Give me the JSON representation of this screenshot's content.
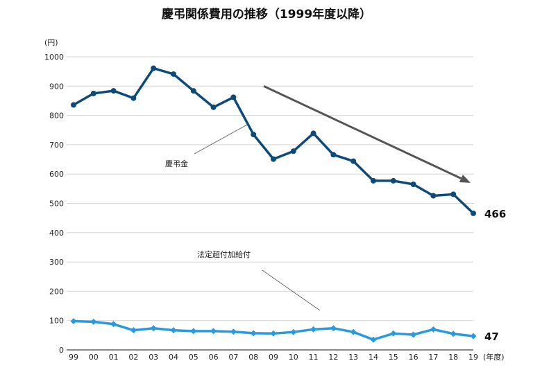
{
  "chart_data": {
    "type": "line",
    "title": "慶弔関係費用の推移（1999年度以降）",
    "y_unit_label": "(円)",
    "x_unit_label": "(年度)",
    "ylim": [
      0,
      1000
    ],
    "y_ticks": [
      0,
      100,
      200,
      300,
      400,
      500,
      600,
      700,
      800,
      900,
      1000
    ],
    "grid": true,
    "categories": [
      "99",
      "00",
      "01",
      "02",
      "03",
      "04",
      "05",
      "06",
      "07",
      "08",
      "09",
      "10",
      "11",
      "12",
      "13",
      "14",
      "15",
      "16",
      "17",
      "18",
      "19"
    ],
    "series": [
      {
        "name": "慶弔金",
        "color": "#0d4a7a",
        "marker": "circle",
        "values": [
          836,
          875,
          884,
          859,
          961,
          941,
          884,
          828,
          862,
          735,
          651,
          678,
          739,
          666,
          644,
          577,
          577,
          565,
          526,
          531,
          466
        ],
        "end_label": "466"
      },
      {
        "name": "法定超付加給付",
        "color": "#2a9ae0",
        "marker": "diamond",
        "values": [
          98,
          96,
          88,
          67,
          74,
          67,
          64,
          64,
          62,
          57,
          56,
          61,
          70,
          74,
          61,
          35,
          56,
          52,
          70,
          55,
          47
        ],
        "end_label": "47"
      }
    ],
    "trend_arrow": {
      "from": {
        "x": "09",
        "y": 900
      },
      "to": {
        "x": "19",
        "y": 570
      },
      "color": "#555555"
    }
  }
}
